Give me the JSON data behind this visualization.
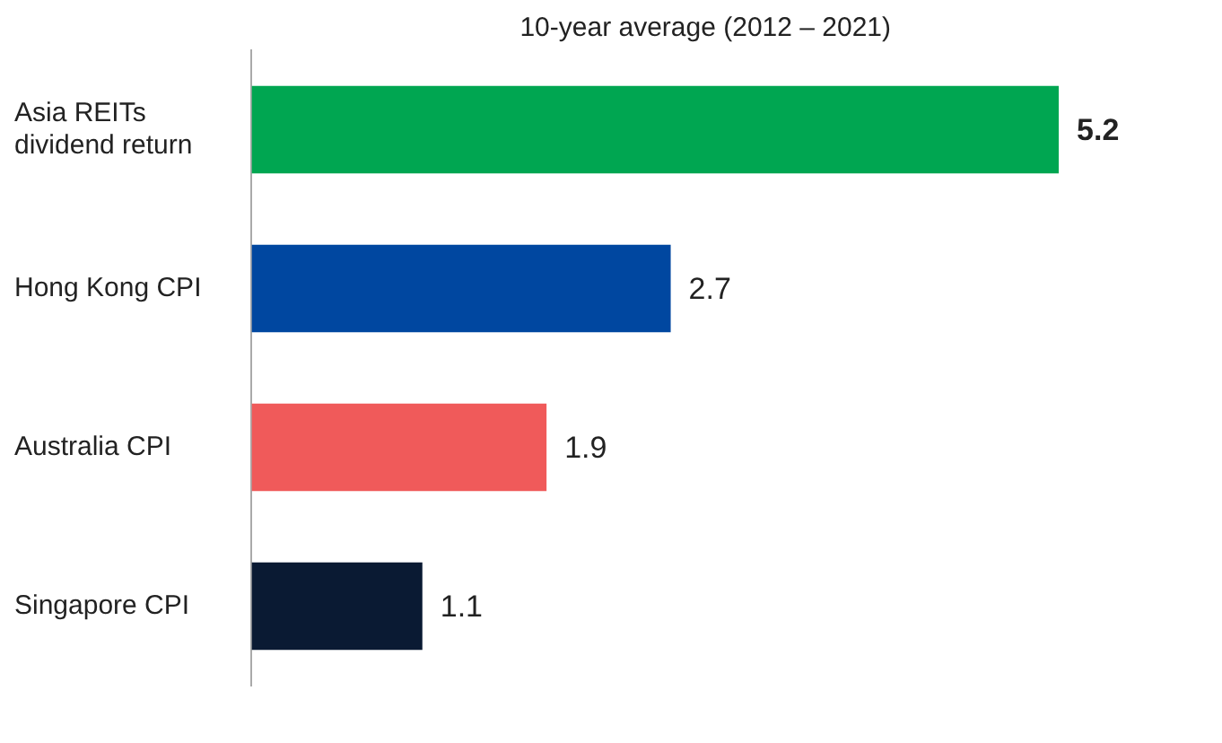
{
  "chart_data": {
    "type": "bar",
    "orientation": "horizontal",
    "title": "10-year average (2012 – 2021)",
    "categories": [
      "Asia REITs dividend return",
      "Hong Kong CPI",
      "Australia CPI",
      "Singapore CPI"
    ],
    "values": [
      5.2,
      2.7,
      1.9,
      1.1
    ],
    "colors": [
      "#00a651",
      "#0047a0",
      "#f05a5a",
      "#0a1a33"
    ],
    "data_labels": true,
    "legend": false
  }
}
